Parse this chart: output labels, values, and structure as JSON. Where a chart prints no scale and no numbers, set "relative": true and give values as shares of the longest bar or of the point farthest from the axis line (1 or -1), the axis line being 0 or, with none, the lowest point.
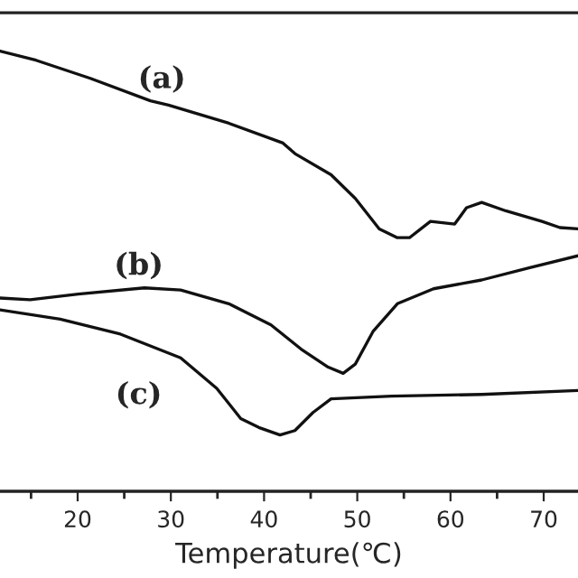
{
  "chart_data": {
    "type": "line",
    "relative": true,
    "xlabel": "Temperature(℃)",
    "xlim": [
      11.67,
      73.68
    ],
    "xticks": [
      {
        "value": 15,
        "label": null
      },
      20,
      {
        "value": 25,
        "label": null
      },
      30,
      {
        "value": 35,
        "label": null
      },
      40,
      {
        "value": 45,
        "label": null
      },
      50,
      {
        "value": 55,
        "label": null
      },
      60,
      {
        "value": 65,
        "label": null
      },
      70
    ],
    "tick_labels": "x",
    "grid": false,
    "legend": false,
    "series": [
      {
        "color": "#111111",
        "x": [
          11.67,
          15.54,
          21.36,
          27.81,
          29.75,
          36.22,
          42.03,
          43.31,
          47.19,
          49.79,
          52.36,
          54.3,
          55.6,
          57.85,
          60.45,
          61.72,
          63.35,
          65.93,
          69.81,
          71.74,
          73.68
        ],
        "values": [
          1.0,
          0.979,
          0.938,
          0.887,
          0.877,
          0.836,
          0.791,
          0.767,
          0.719,
          0.665,
          0.596,
          0.576,
          0.576,
          0.613,
          0.607,
          0.644,
          0.656,
          0.637,
          0.613,
          0.599,
          0.596
        ]
      },
      {
        "color": "#111111",
        "x": [
          11.67,
          14.9,
          20.06,
          27.17,
          31.05,
          36.22,
          40.74,
          43.97,
          46.88,
          48.49,
          49.79,
          51.72,
          54.3,
          58.18,
          63.35,
          68.51,
          73.68
        ],
        "values": [
          0.439,
          0.435,
          0.448,
          0.462,
          0.457,
          0.426,
          0.378,
          0.323,
          0.282,
          0.268,
          0.289,
          0.364,
          0.426,
          0.46,
          0.48,
          0.508,
          0.535
        ]
      },
      {
        "color": "#111111",
        "x": [
          11.67,
          18.12,
          24.59,
          31.05,
          34.92,
          37.5,
          39.44,
          41.71,
          43.31,
          45.25,
          47.19,
          53.66,
          63.35,
          73.68
        ],
        "values": [
          0.412,
          0.391,
          0.357,
          0.303,
          0.234,
          0.165,
          0.145,
          0.128,
          0.138,
          0.179,
          0.21,
          0.216,
          0.22,
          0.229
        ]
      }
    ],
    "annotations": [
      "(a)",
      "(b)",
      "(c)"
    ]
  }
}
